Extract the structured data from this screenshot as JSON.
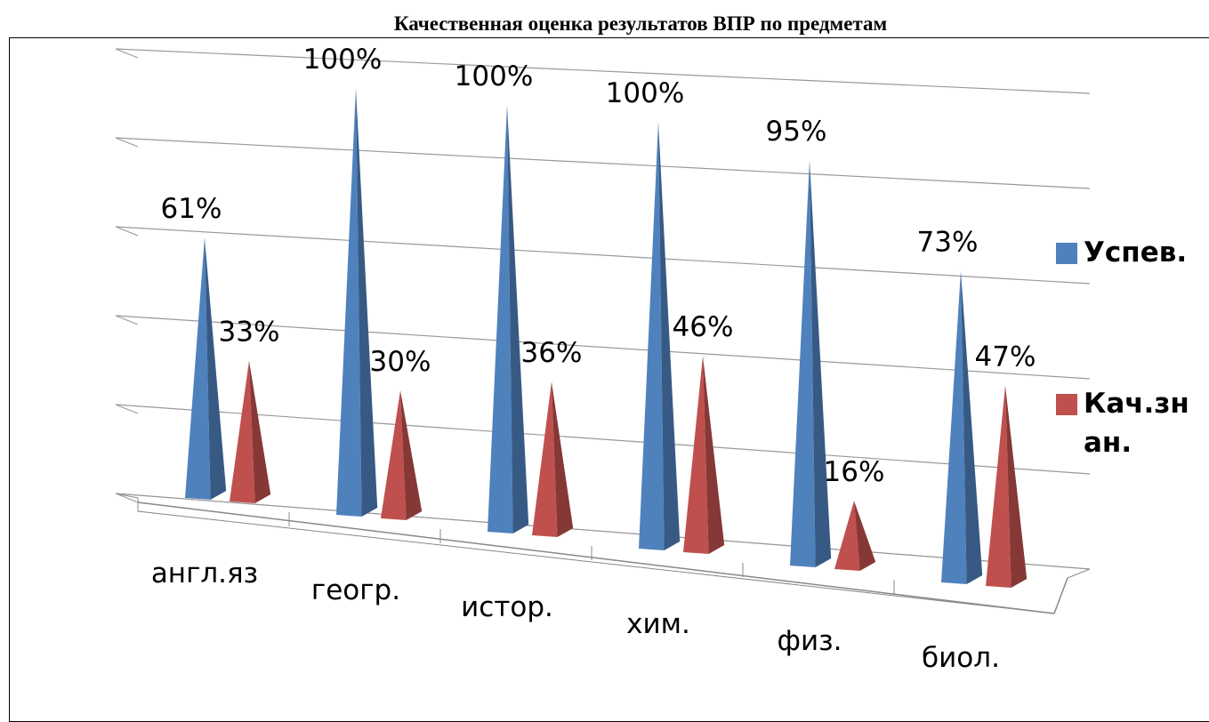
{
  "chart_data": {
    "type": "pyramid3d",
    "title": "Качественная оценка результатов ВПР по предметам",
    "categories": [
      "англ.яз",
      "геогр.",
      "истор.",
      "хим.",
      "физ.",
      "биол."
    ],
    "series": [
      {
        "name": "Успев.",
        "color": "#4f81bd",
        "values": [
          61,
          100,
          100,
          100,
          95,
          73
        ],
        "value_labels": [
          "61%",
          "100%",
          "100%",
          "100%",
          "95%",
          "73%"
        ]
      },
      {
        "name": "Кач.знан.",
        "color": "#c0504d",
        "values": [
          33,
          30,
          36,
          46,
          16,
          47
        ],
        "value_labels": [
          "33%",
          "30%",
          "36%",
          "46%",
          "16%",
          "47%"
        ]
      }
    ],
    "ylim": [
      0,
      100
    ],
    "yticks": [
      0,
      20,
      40,
      60,
      80,
      100
    ],
    "grid": true,
    "legend": "right"
  }
}
